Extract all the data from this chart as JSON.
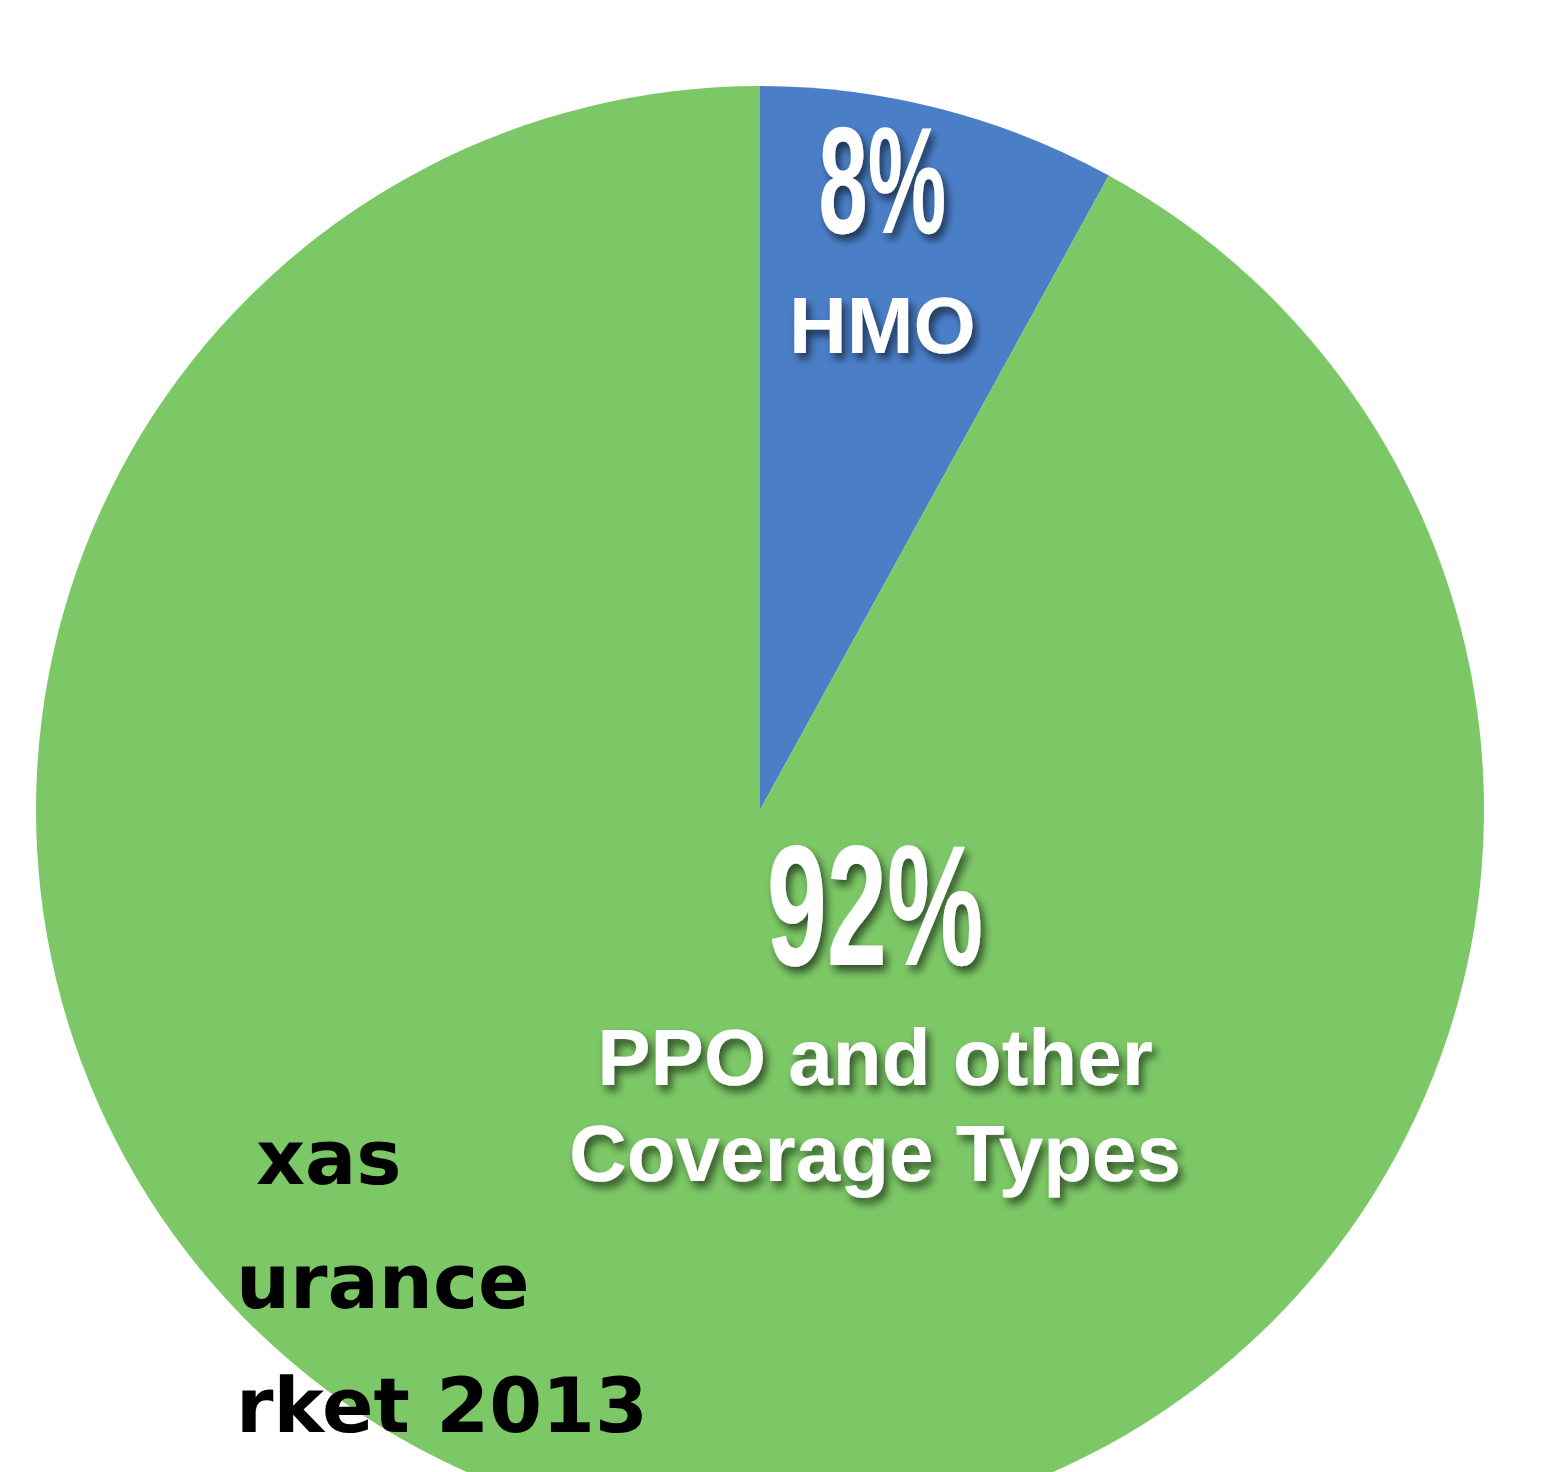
{
  "chart_data": {
    "type": "pie",
    "categories": [
      "HMO",
      "PPO and other Coverage Types"
    ],
    "values": [
      8,
      92
    ],
    "colors": [
      "#4a7fc8",
      "#7cc866"
    ],
    "value_labels": [
      "8%",
      "92%"
    ],
    "annotations": [
      "xas",
      "urance",
      "rket 2013"
    ]
  }
}
